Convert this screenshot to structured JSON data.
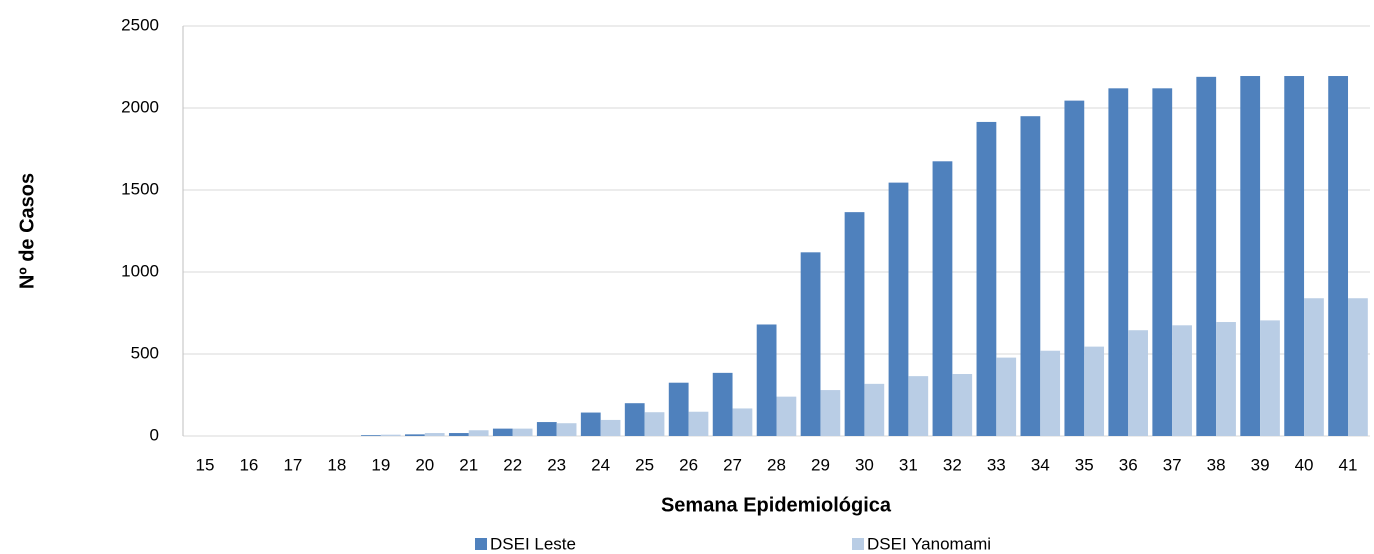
{
  "chart_data": {
    "type": "grouped-bar",
    "x_label": "Semana Epidemiológica",
    "y_label": "Nº de Casos",
    "categories": [
      "15",
      "16",
      "17",
      "18",
      "19",
      "20",
      "21",
      "22",
      "23",
      "24",
      "25",
      "26",
      "27",
      "28",
      "29",
      "30",
      "31",
      "32",
      "33",
      "34",
      "35",
      "36",
      "37",
      "38",
      "39",
      "40",
      "41"
    ],
    "series": [
      {
        "name": "DSEI Leste",
        "color": "#4f81bd",
        "values": [
          0,
          0,
          0,
          0,
          5,
          10,
          18,
          45,
          85,
          143,
          200,
          325,
          385,
          680,
          1120,
          1365,
          1545,
          1675,
          1915,
          1950,
          2045,
          2120,
          2120,
          2190,
          2195,
          2195,
          2195
        ]
      },
      {
        "name": "DSEI Yanomami",
        "color": "#b9cde5",
        "values": [
          0,
          0,
          0,
          0,
          8,
          18,
          35,
          45,
          78,
          98,
          145,
          148,
          168,
          240,
          280,
          318,
          365,
          378,
          478,
          520,
          545,
          645,
          675,
          695,
          705,
          840,
          840
        ]
      }
    ],
    "ylim": [
      0,
      2500
    ],
    "yticks": [
      0,
      500,
      1000,
      1500,
      2000,
      2500
    ],
    "grid": true
  }
}
